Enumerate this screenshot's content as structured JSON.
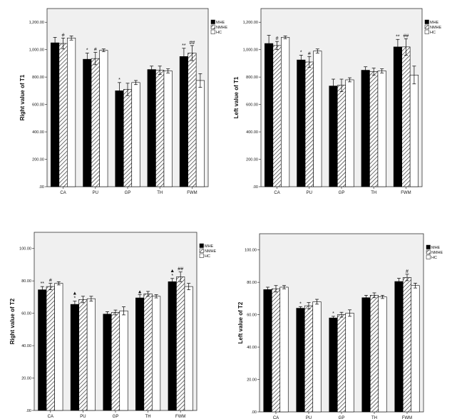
{
  "chart_data": [
    {
      "type": "bar",
      "ylabel": "Right value of T1",
      "ylim": [
        0,
        1300
      ],
      "yticks": [
        0,
        200,
        400,
        600,
        800,
        1000,
        1200
      ],
      "ytick_labels": [
        ".00",
        "200.00",
        "400.00",
        "600.00",
        "800.00",
        "1,000.00",
        "1,200.00"
      ],
      "categories": [
        "CA",
        "PU",
        "GP",
        "TH",
        "FWM"
      ],
      "legend": [
        "MHE",
        "NMHE",
        "HC"
      ],
      "series": [
        {
          "name": "MHE",
          "values": [
            1050,
            930,
            700,
            855,
            950
          ],
          "errors": [
            40,
            45,
            60,
            25,
            60
          ]
        },
        {
          "name": "NMHE",
          "values": [
            1045,
            935,
            710,
            850,
            975
          ],
          "errors": [
            40,
            45,
            45,
            30,
            55
          ]
        },
        {
          "name": "HC",
          "values": [
            1085,
            995,
            760,
            845,
            775
          ],
          "errors": [
            15,
            10,
            15,
            15,
            50
          ]
        }
      ],
      "annotations": [
        {
          "category": 0,
          "series": 1,
          "text": "#"
        },
        {
          "category": 1,
          "series": 0,
          "text": "*"
        },
        {
          "category": 1,
          "series": 1,
          "text": "#"
        },
        {
          "category": 2,
          "series": 0,
          "text": "*"
        },
        {
          "category": 4,
          "series": 0,
          "text": "**"
        },
        {
          "category": 4,
          "series": 1,
          "text": "##"
        }
      ]
    },
    {
      "type": "bar",
      "ylabel": "Left value of T1",
      "ylim": [
        0,
        1300
      ],
      "yticks": [
        0,
        200,
        400,
        600,
        800,
        1000,
        1200
      ],
      "ytick_labels": [
        ".00",
        "200.00",
        "400.00",
        "600.00",
        "800.00",
        "1,000.00",
        "1,200.00"
      ],
      "categories": [
        "CA",
        "PU",
        "GP",
        "TH",
        "FWM"
      ],
      "legend": [
        "MHE",
        "NMHE",
        "HC"
      ],
      "series": [
        {
          "name": "MHE",
          "values": [
            1045,
            925,
            735,
            850,
            1020
          ],
          "errors": [
            60,
            35,
            50,
            25,
            55
          ]
        },
        {
          "name": "NMHE",
          "values": [
            1030,
            910,
            740,
            840,
            1020
          ],
          "errors": [
            30,
            40,
            45,
            25,
            60
          ]
        },
        {
          "name": "HC",
          "values": [
            1090,
            990,
            780,
            845,
            815
          ],
          "errors": [
            10,
            15,
            15,
            15,
            65
          ]
        }
      ],
      "annotations": [
        {
          "category": 0,
          "series": 1,
          "text": "#"
        },
        {
          "category": 1,
          "series": 0,
          "text": "*"
        },
        {
          "category": 1,
          "series": 1,
          "text": "#"
        },
        {
          "category": 4,
          "series": 0,
          "text": "**"
        },
        {
          "category": 4,
          "series": 1,
          "text": "##"
        }
      ]
    },
    {
      "type": "bar",
      "ylabel": "Right value of T2",
      "ylim": [
        0,
        110
      ],
      "yticks": [
        0,
        20,
        40,
        60,
        80,
        100
      ],
      "ytick_labels": [
        ".00",
        "20.00",
        "40.00",
        "60.00",
        "80.00",
        "100.00"
      ],
      "categories": [
        "CA",
        "PU",
        "GP",
        "TH",
        "FWM"
      ],
      "legend": [
        "MHE",
        "NMHE",
        "HC"
      ],
      "series": [
        {
          "name": "MHE",
          "values": [
            74.5,
            65.5,
            59.5,
            69.5,
            79.5
          ],
          "errors": [
            2,
            2,
            1.5,
            2,
            2
          ]
        },
        {
          "name": "NMHE",
          "values": [
            76.5,
            68.5,
            60.5,
            72,
            82.5
          ],
          "errors": [
            2,
            2,
            1.5,
            1.5,
            3
          ]
        },
        {
          "name": "HC",
          "values": [
            78.5,
            69,
            61.5,
            70.5,
            76.5
          ],
          "errors": [
            1,
            1.5,
            2.5,
            1,
            2
          ]
        }
      ],
      "annotations": [
        {
          "category": 0,
          "series": 0,
          "text": "**"
        },
        {
          "category": 0,
          "series": 1,
          "text": "#"
        },
        {
          "category": 1,
          "series": 0,
          "text": "▲\n*"
        },
        {
          "category": 3,
          "series": 0,
          "text": "▲"
        },
        {
          "category": 4,
          "series": 0,
          "text": "▲\n*"
        },
        {
          "category": 4,
          "series": 1,
          "text": "##"
        }
      ]
    },
    {
      "type": "bar",
      "ylabel": "Left value of T2",
      "ylim": [
        0,
        110
      ],
      "yticks": [
        0,
        20,
        40,
        60,
        80,
        100
      ],
      "ytick_labels": [
        ".00",
        "20.00",
        "40.00",
        "60.00",
        "80.00",
        "100.00"
      ],
      "categories": [
        "CA",
        "PU",
        "GP",
        "TH",
        "FWM"
      ],
      "legend": [
        "MHE",
        "NMHE",
        "HC"
      ],
      "series": [
        {
          "name": "MHE",
          "values": [
            75.5,
            64,
            58,
            70.5,
            80.5
          ],
          "errors": [
            1.5,
            1,
            1,
            1.5,
            2
          ]
        },
        {
          "name": "NMHE",
          "values": [
            76,
            65.5,
            60,
            72,
            83
          ],
          "errors": [
            2,
            2,
            1.5,
            1.5,
            2
          ]
        },
        {
          "name": "HC",
          "values": [
            77,
            68,
            61,
            71,
            78
          ],
          "errors": [
            1,
            1.5,
            2,
            1,
            1.5
          ]
        }
      ],
      "annotations": [
        {
          "category": 1,
          "series": 0,
          "text": "*"
        },
        {
          "category": 2,
          "series": 0,
          "text": "*"
        },
        {
          "category": 4,
          "series": 1,
          "text": "#"
        }
      ]
    }
  ]
}
